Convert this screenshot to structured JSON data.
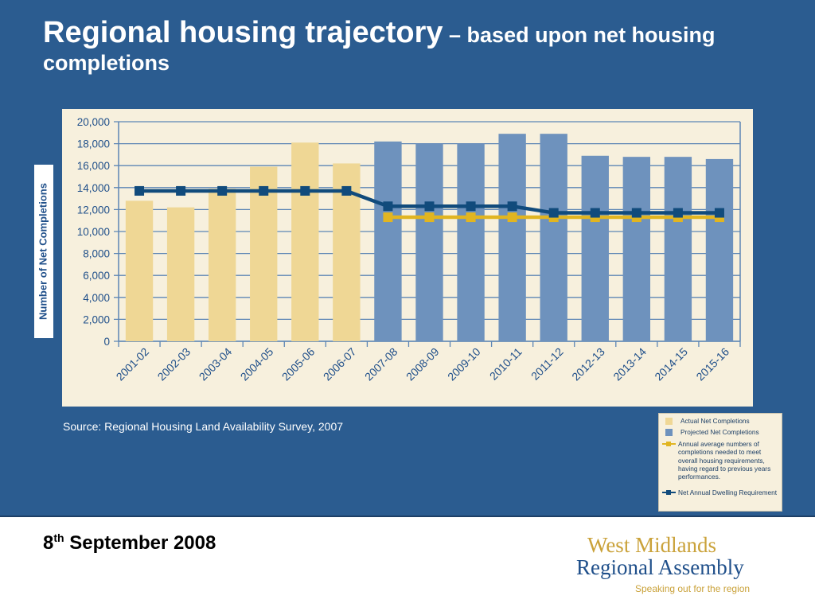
{
  "slide": {
    "title_main": "Regional housing trajectory",
    "title_sub": " – based upon net housing completions",
    "source": "Source: Regional Housing Land Availability Survey, 2007",
    "date_day": "8",
    "date_suffix": "th",
    "date_rest": " September 2008",
    "logo_line1": "West Midlands",
    "logo_line2": "Regional Assembly",
    "logo_tagline": "Speaking out for the region"
  },
  "legend": {
    "actual": "Actual Net Completions",
    "projected": "Projected Net Completions",
    "annual_average": "Annual average numbers of completions needed to meet overall housing requirements, having regard to previous years performances.",
    "net_requirement": "Net Annual Dwelling Requirement"
  },
  "colors": {
    "background": "#2b5c90",
    "panel": "#f7f0dd",
    "actual_bar": "#efd795",
    "projected_bar": "#6e92bd",
    "annual_average_line": "#e1b521",
    "net_requirement_line": "#114b7c",
    "grid": "#5d86b5"
  },
  "chart_data": {
    "type": "bar",
    "ylabel": "Number of Net Completions",
    "ylim": [
      0,
      20000
    ],
    "yticks": [
      0,
      2000,
      4000,
      6000,
      8000,
      10000,
      12000,
      14000,
      16000,
      18000,
      20000
    ],
    "ytick_labels": [
      "0",
      "2,000",
      "4,000",
      "6,000",
      "8,000",
      "10,000",
      "12,000",
      "14,000",
      "16,000",
      "18,000",
      "20,000"
    ],
    "grid": true,
    "legend_position": "bottom-right, outside chart",
    "categories": [
      "2001-02",
      "2002-03",
      "2003-04",
      "2004-05",
      "2005-06",
      "2006-07",
      "2007-08",
      "2008-09",
      "2009-10",
      "2010-11",
      "2011-12",
      "2012-13",
      "2013-14",
      "2014-15",
      "2015-16"
    ],
    "series": [
      {
        "name": "Actual Net Completions",
        "kind": "bar",
        "values": [
          12800,
          12200,
          13900,
          15900,
          18100,
          16200,
          null,
          null,
          null,
          null,
          null,
          null,
          null,
          null,
          null
        ]
      },
      {
        "name": "Projected Net Completions",
        "kind": "bar",
        "values": [
          null,
          null,
          null,
          null,
          null,
          null,
          18200,
          18000,
          18000,
          18900,
          18900,
          16900,
          16800,
          16800,
          16600
        ]
      },
      {
        "name": "Annual average numbers of completions needed to meet overall housing requirements, having regard to previous years performances.",
        "kind": "line",
        "values": [
          null,
          null,
          null,
          null,
          null,
          null,
          11300,
          11300,
          11300,
          11300,
          11300,
          11300,
          11300,
          11300,
          11300
        ]
      },
      {
        "name": "Net Annual Dwelling Requirement",
        "kind": "line",
        "values": [
          13700,
          13700,
          13700,
          13700,
          13700,
          13700,
          12300,
          12300,
          12300,
          12300,
          11700,
          11700,
          11700,
          11700,
          11700
        ]
      }
    ]
  }
}
